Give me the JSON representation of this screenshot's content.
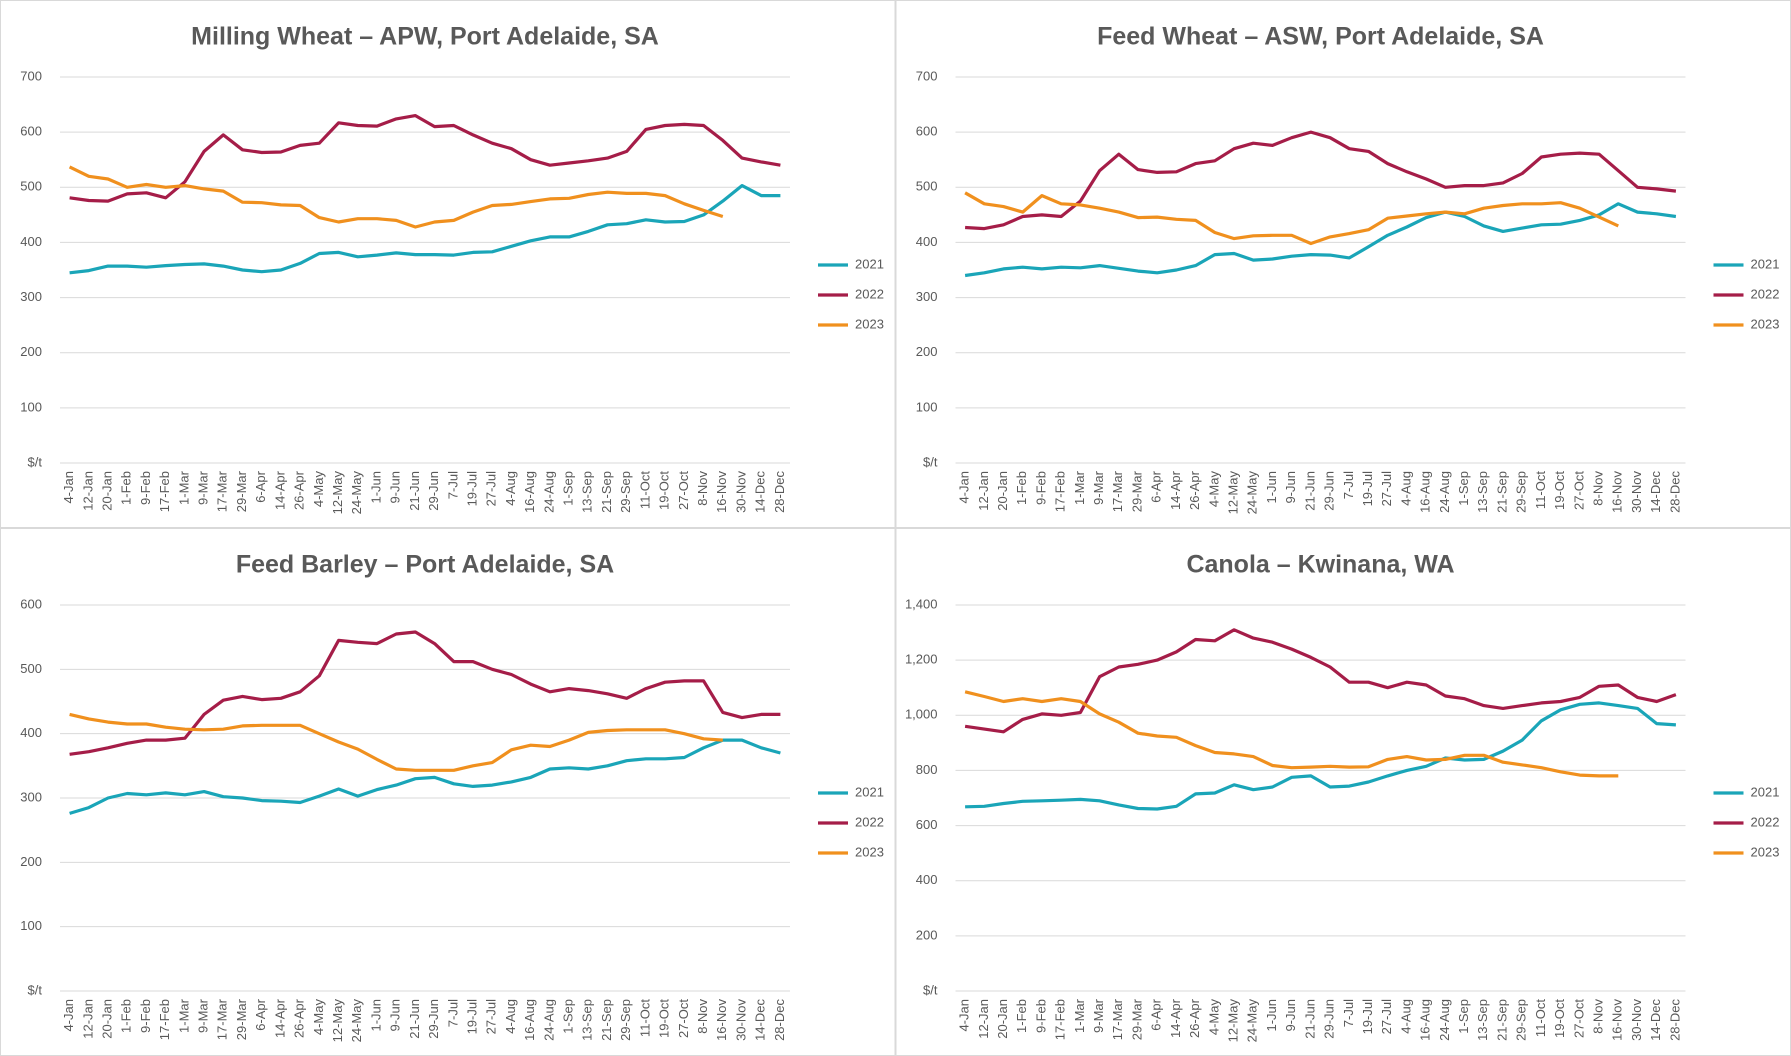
{
  "chart_data": [
    {
      "type": "line",
      "title": "Milling Wheat – APW, Port Adelaide, SA",
      "categories": [
        "4-Jan",
        "12-Jan",
        "20-Jan",
        "1-Feb",
        "9-Feb",
        "17-Feb",
        "1-Mar",
        "9-Mar",
        "17-Mar",
        "29-Mar",
        "6-Apr",
        "14-Apr",
        "26-Apr",
        "4-May",
        "12-May",
        "24-May",
        "1-Jun",
        "9-Jun",
        "21-Jun",
        "29-Jun",
        "7-Jul",
        "19-Jul",
        "27-Jul",
        "4-Aug",
        "16-Aug",
        "24-Aug",
        "1-Sep",
        "13-Sep",
        "21-Sep",
        "29-Sep",
        "11-Oct",
        "19-Oct",
        "27-Oct",
        "8-Nov",
        "16-Nov",
        "30-Nov",
        "14-Dec",
        "28-Dec"
      ],
      "series": [
        {
          "name": "2021",
          "color": "#1aa5b8",
          "values": [
            345,
            349,
            357,
            357,
            355,
            358,
            360,
            361,
            357,
            350,
            347,
            350,
            362,
            380,
            382,
            374,
            377,
            381,
            378,
            378,
            377,
            382,
            383,
            393,
            403,
            410,
            410,
            420,
            432,
            434,
            441,
            437,
            438,
            450,
            475,
            503,
            485,
            485
          ]
        },
        {
          "name": "2022",
          "color": "#a51d48",
          "values": [
            481,
            476,
            475,
            488,
            490,
            481,
            510,
            565,
            595,
            568,
            563,
            564,
            576,
            580,
            617,
            612,
            611,
            624,
            630,
            610,
            612,
            595,
            580,
            570,
            550,
            540,
            544,
            548,
            553,
            565,
            605,
            612,
            614,
            612,
            585,
            553,
            546,
            540
          ]
        },
        {
          "name": "2023",
          "color": "#f0901e",
          "values": [
            537,
            520,
            515,
            500,
            505,
            500,
            503,
            497,
            493,
            473,
            472,
            468,
            467,
            445,
            437,
            443,
            443,
            440,
            428,
            437,
            440,
            455,
            467,
            469,
            474,
            479,
            480,
            487,
            491,
            489,
            489,
            485,
            470,
            458,
            447,
            null,
            null,
            null
          ]
        }
      ],
      "ylim": [
        0,
        700
      ],
      "yticks": [
        {
          "value": 0,
          "label": "$/t"
        },
        100,
        200,
        300,
        400,
        500,
        600,
        700
      ],
      "grid": true,
      "legend": "right"
    },
    {
      "type": "line",
      "title": "Feed Wheat – ASW, Port Adelaide, SA",
      "categories": [
        "4-Jan",
        "12-Jan",
        "20-Jan",
        "1-Feb",
        "9-Feb",
        "17-Feb",
        "1-Mar",
        "9-Mar",
        "17-Mar",
        "29-Mar",
        "6-Apr",
        "14-Apr",
        "26-Apr",
        "4-May",
        "12-May",
        "24-May",
        "1-Jun",
        "9-Jun",
        "21-Jun",
        "29-Jun",
        "7-Jul",
        "19-Jul",
        "27-Jul",
        "4-Aug",
        "16-Aug",
        "24-Aug",
        "1-Sep",
        "13-Sep",
        "21-Sep",
        "29-Sep",
        "11-Oct",
        "19-Oct",
        "27-Oct",
        "8-Nov",
        "16-Nov",
        "30-Nov",
        "14-Dec",
        "28-Dec"
      ],
      "series": [
        {
          "name": "2021",
          "color": "#1aa5b8",
          "values": [
            340,
            345,
            352,
            355,
            352,
            355,
            354,
            358,
            353,
            348,
            345,
            350,
            358,
            378,
            380,
            368,
            370,
            375,
            378,
            377,
            372,
            392,
            413,
            428,
            445,
            455,
            447,
            430,
            420,
            426,
            432,
            433,
            440,
            450,
            470,
            455,
            452,
            447
          ]
        },
        {
          "name": "2022",
          "color": "#a51d48",
          "values": [
            427,
            425,
            432,
            447,
            450,
            447,
            475,
            530,
            560,
            532,
            527,
            528,
            543,
            548,
            570,
            580,
            576,
            590,
            600,
            590,
            570,
            565,
            543,
            528,
            515,
            500,
            503,
            503,
            508,
            525,
            555,
            560,
            562,
            560,
            530,
            500,
            497,
            493
          ]
        },
        {
          "name": "2023",
          "color": "#f0901e",
          "values": [
            490,
            470,
            465,
            455,
            485,
            470,
            468,
            462,
            455,
            445,
            446,
            442,
            440,
            418,
            407,
            412,
            413,
            413,
            398,
            410,
            416,
            423,
            444,
            448,
            452,
            455,
            452,
            462,
            467,
            470,
            470,
            472,
            462,
            446,
            430,
            null,
            null,
            null
          ]
        }
      ],
      "ylim": [
        0,
        700
      ],
      "yticks": [
        {
          "value": 0,
          "label": "$/t"
        },
        100,
        200,
        300,
        400,
        500,
        600,
        700
      ],
      "grid": true,
      "legend": "right"
    },
    {
      "type": "line",
      "title": "Feed Barley – Port Adelaide, SA",
      "categories": [
        "4-Jan",
        "12-Jan",
        "20-Jan",
        "1-Feb",
        "9-Feb",
        "17-Feb",
        "1-Mar",
        "9-Mar",
        "17-Mar",
        "29-Mar",
        "6-Apr",
        "14-Apr",
        "26-Apr",
        "4-May",
        "12-May",
        "24-May",
        "1-Jun",
        "9-Jun",
        "21-Jun",
        "29-Jun",
        "7-Jul",
        "19-Jul",
        "27-Jul",
        "4-Aug",
        "16-Aug",
        "24-Aug",
        "1-Sep",
        "13-Sep",
        "21-Sep",
        "29-Sep",
        "11-Oct",
        "19-Oct",
        "27-Oct",
        "8-Nov",
        "16-Nov",
        "30-Nov",
        "14-Dec",
        "28-Dec"
      ],
      "series": [
        {
          "name": "2021",
          "color": "#1aa5b8",
          "values": [
            276,
            285,
            300,
            307,
            305,
            308,
            305,
            310,
            302,
            300,
            296,
            295,
            293,
            303,
            314,
            303,
            313,
            320,
            330,
            332,
            322,
            318,
            320,
            325,
            332,
            345,
            347,
            345,
            350,
            358,
            361,
            361,
            363,
            378,
            390,
            390,
            378,
            370
          ]
        },
        {
          "name": "2022",
          "color": "#a51d48",
          "values": [
            368,
            372,
            378,
            385,
            390,
            390,
            393,
            430,
            452,
            458,
            453,
            455,
            465,
            490,
            545,
            542,
            540,
            555,
            558,
            540,
            512,
            512,
            500,
            492,
            477,
            465,
            470,
            467,
            462,
            455,
            470,
            480,
            482,
            482,
            433,
            425,
            430,
            430
          ]
        },
        {
          "name": "2023",
          "color": "#f0901e",
          "values": [
            430,
            423,
            418,
            415,
            415,
            410,
            407,
            406,
            407,
            412,
            413,
            413,
            413,
            400,
            387,
            376,
            360,
            345,
            343,
            343,
            343,
            350,
            355,
            375,
            382,
            380,
            390,
            402,
            405,
            406,
            406,
            406,
            400,
            392,
            390,
            null,
            null,
            null
          ]
        }
      ],
      "ylim": [
        0,
        600
      ],
      "yticks": [
        {
          "value": 0,
          "label": "$/t"
        },
        100,
        200,
        300,
        400,
        500,
        600
      ],
      "grid": true,
      "legend": "right"
    },
    {
      "type": "line",
      "title": "Canola – Kwinana, WA",
      "categories": [
        "4-Jan",
        "12-Jan",
        "20-Jan",
        "1-Feb",
        "9-Feb",
        "17-Feb",
        "1-Mar",
        "9-Mar",
        "17-Mar",
        "29-Mar",
        "6-Apr",
        "14-Apr",
        "26-Apr",
        "4-May",
        "12-May",
        "24-May",
        "1-Jun",
        "9-Jun",
        "21-Jun",
        "29-Jun",
        "7-Jul",
        "19-Jul",
        "27-Jul",
        "4-Aug",
        "16-Aug",
        "24-Aug",
        "1-Sep",
        "13-Sep",
        "21-Sep",
        "29-Sep",
        "11-Oct",
        "19-Oct",
        "27-Oct",
        "8-Nov",
        "16-Nov",
        "30-Nov",
        "14-Dec",
        "28-Dec"
      ],
      "series": [
        {
          "name": "2021",
          "color": "#1aa5b8",
          "values": [
            668,
            670,
            680,
            688,
            690,
            692,
            695,
            690,
            675,
            662,
            660,
            670,
            715,
            718,
            748,
            730,
            740,
            775,
            780,
            740,
            743,
            758,
            780,
            800,
            815,
            845,
            838,
            840,
            870,
            910,
            980,
            1020,
            1040,
            1045,
            1035,
            1025,
            970,
            965
          ]
        },
        {
          "name": "2022",
          "color": "#a51d48",
          "values": [
            960,
            950,
            940,
            985,
            1005,
            1000,
            1010,
            1140,
            1175,
            1185,
            1200,
            1230,
            1275,
            1270,
            1310,
            1280,
            1265,
            1240,
            1210,
            1175,
            1120,
            1120,
            1100,
            1120,
            1110,
            1070,
            1060,
            1035,
            1025,
            1035,
            1045,
            1050,
            1065,
            1105,
            1110,
            1065,
            1050,
            1075
          ]
        },
        {
          "name": "2023",
          "color": "#f0901e",
          "values": [
            1085,
            1068,
            1050,
            1060,
            1050,
            1060,
            1050,
            1005,
            975,
            935,
            925,
            920,
            890,
            865,
            860,
            850,
            818,
            810,
            812,
            815,
            812,
            813,
            840,
            850,
            838,
            840,
            855,
            855,
            830,
            820,
            810,
            795,
            783,
            780,
            780,
            null,
            null,
            null
          ]
        }
      ],
      "ylim": [
        0,
        1400
      ],
      "yticks": [
        {
          "value": 0,
          "label": "$/t"
        },
        200,
        400,
        600,
        800,
        {
          "value": 1000,
          "label": "1,000"
        },
        {
          "value": 1200,
          "label": "1,200"
        },
        {
          "value": 1400,
          "label": "1,400"
        }
      ],
      "grid": true,
      "legend": "right"
    }
  ]
}
